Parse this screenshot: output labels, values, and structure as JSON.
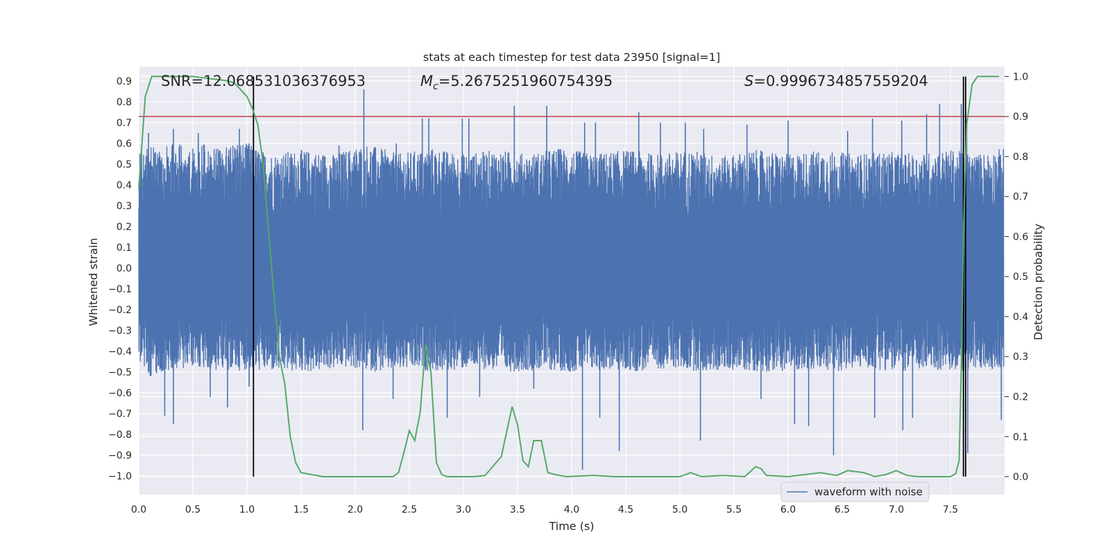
{
  "chart_data": {
    "type": "line",
    "title": "stats at each timestep for test data 23950 [signal=1]",
    "xlabel": "Time (s)",
    "ylabel": "Whitened strain",
    "ylabel_right": "Detection probability",
    "xlim": [
      0.0,
      8.0
    ],
    "ylim": [
      -1.09,
      0.97
    ],
    "ylim_right": [
      -0.045,
      1.025
    ],
    "x_ticks": [
      0.0,
      0.5,
      1.0,
      1.5,
      2.0,
      2.5,
      3.0,
      3.5,
      4.0,
      4.5,
      5.0,
      5.5,
      6.0,
      6.5,
      7.0,
      7.5
    ],
    "y_ticks": [
      0.9,
      0.8,
      0.7,
      0.6,
      0.5,
      0.4,
      0.3,
      0.2,
      0.1,
      0.0,
      -0.1,
      -0.2,
      -0.3,
      -0.4,
      -0.5,
      -0.6,
      -0.7,
      -0.8,
      -0.9,
      -1.0
    ],
    "y_ticks_right": [
      1.0,
      0.9,
      0.8,
      0.7,
      0.6,
      0.5,
      0.4,
      0.3,
      0.2,
      0.1,
      0.0
    ],
    "grid": true,
    "legend_position": "lower-right",
    "annotations": {
      "snr": "SNR=12.068531036376953",
      "mc_symbol": "M",
      "mc_sub": "c",
      "mc_value": "=5.2675251960754395",
      "s_symbol": "S",
      "s_value": "=0.9996734857559204"
    },
    "threshold": 0.9,
    "markers_x": [
      1.06,
      7.62,
      7.64
    ],
    "colors": {
      "waveform": "#4c72b0",
      "probability": "#55a868",
      "threshold": "#c44e52",
      "markers": "#000000",
      "plot_bg": "#eaeaf2",
      "grid": "#ffffff"
    },
    "series": [
      {
        "name": "waveform with noise",
        "axis": "left",
        "envelope_top": [
          [
            0.0,
            0.6
          ],
          [
            0.05,
            0.55
          ],
          [
            0.12,
            0.63
          ],
          [
            0.2,
            0.55
          ],
          [
            0.3,
            0.62
          ],
          [
            0.45,
            0.58
          ],
          [
            0.6,
            0.6
          ],
          [
            0.75,
            0.57
          ],
          [
            0.9,
            0.62
          ],
          [
            1.0,
            0.6
          ],
          [
            1.2,
            0.55
          ],
          [
            1.5,
            0.57
          ],
          [
            1.8,
            0.55
          ],
          [
            2.1,
            0.6
          ],
          [
            2.4,
            0.55
          ],
          [
            2.7,
            0.58
          ],
          [
            3.0,
            0.55
          ],
          [
            3.3,
            0.57
          ],
          [
            3.6,
            0.55
          ],
          [
            3.9,
            0.58
          ],
          [
            4.2,
            0.55
          ],
          [
            4.5,
            0.57
          ],
          [
            4.8,
            0.55
          ],
          [
            5.1,
            0.57
          ],
          [
            5.4,
            0.54
          ],
          [
            5.7,
            0.57
          ],
          [
            6.0,
            0.55
          ],
          [
            6.3,
            0.57
          ],
          [
            6.6,
            0.55
          ],
          [
            6.9,
            0.56
          ],
          [
            7.2,
            0.55
          ],
          [
            7.5,
            0.57
          ],
          [
            7.75,
            0.55
          ],
          [
            8.0,
            0.58
          ]
        ],
        "envelope_bottom": [
          [
            0.0,
            -0.45
          ],
          [
            0.1,
            -0.52
          ],
          [
            0.3,
            -0.5
          ],
          [
            0.5,
            -0.48
          ],
          [
            0.8,
            -0.5
          ],
          [
            1.0,
            -0.49
          ],
          [
            1.3,
            -0.5
          ],
          [
            1.6,
            -0.5
          ],
          [
            1.9,
            -0.48
          ],
          [
            2.2,
            -0.5
          ],
          [
            2.5,
            -0.49
          ],
          [
            2.8,
            -0.5
          ],
          [
            3.1,
            -0.48
          ],
          [
            3.4,
            -0.5
          ],
          [
            3.7,
            -0.49
          ],
          [
            4.0,
            -0.5
          ],
          [
            4.3,
            -0.49
          ],
          [
            4.6,
            -0.5
          ],
          [
            4.9,
            -0.48
          ],
          [
            5.2,
            -0.5
          ],
          [
            5.5,
            -0.49
          ],
          [
            5.8,
            -0.5
          ],
          [
            6.1,
            -0.49
          ],
          [
            6.4,
            -0.5
          ],
          [
            6.7,
            -0.48
          ],
          [
            7.0,
            -0.5
          ],
          [
            7.3,
            -0.49
          ],
          [
            7.6,
            -0.5
          ],
          [
            8.0,
            -0.48
          ]
        ],
        "peaks": [
          [
            0.09,
            0.65
          ],
          [
            0.32,
            0.67
          ],
          [
            0.55,
            0.65
          ],
          [
            0.93,
            0.67
          ],
          [
            1.02,
            0.6
          ],
          [
            1.85,
            0.59
          ],
          [
            2.08,
            0.86
          ],
          [
            2.38,
            0.6
          ],
          [
            2.62,
            0.72
          ],
          [
            2.68,
            0.72
          ],
          [
            2.99,
            0.72
          ],
          [
            3.05,
            0.72
          ],
          [
            3.47,
            0.78
          ],
          [
            3.77,
            0.78
          ],
          [
            4.12,
            0.7
          ],
          [
            4.22,
            0.7
          ],
          [
            4.62,
            0.75
          ],
          [
            4.82,
            0.7
          ],
          [
            5.05,
            0.7
          ],
          [
            5.22,
            0.67
          ],
          [
            5.62,
            0.69
          ],
          [
            6.0,
            0.71
          ],
          [
            6.55,
            0.66
          ],
          [
            6.78,
            0.72
          ],
          [
            7.05,
            0.71
          ],
          [
            7.28,
            0.74
          ],
          [
            7.4,
            0.79
          ],
          [
            7.6,
            0.79
          ],
          [
            7.65,
            0.72
          ]
        ],
        "troughs": [
          [
            0.24,
            -0.71
          ],
          [
            0.32,
            -0.75
          ],
          [
            0.66,
            -0.62
          ],
          [
            0.82,
            -0.67
          ],
          [
            1.02,
            -0.57
          ],
          [
            2.07,
            -0.78
          ],
          [
            2.35,
            -0.63
          ],
          [
            2.85,
            -0.72
          ],
          [
            3.15,
            -0.62
          ],
          [
            3.65,
            -0.58
          ],
          [
            4.1,
            -0.97
          ],
          [
            4.26,
            -0.72
          ],
          [
            4.44,
            -0.88
          ],
          [
            5.19,
            -0.83
          ],
          [
            5.75,
            -0.63
          ],
          [
            6.06,
            -0.75
          ],
          [
            6.19,
            -0.76
          ],
          [
            6.42,
            -0.9
          ],
          [
            6.8,
            -0.72
          ],
          [
            7.06,
            -0.78
          ],
          [
            7.15,
            -0.72
          ],
          [
            7.62,
            -0.73
          ],
          [
            7.66,
            -0.89
          ],
          [
            7.97,
            -0.73
          ]
        ]
      },
      {
        "name": "",
        "axis": "right",
        "x": [
          0.0,
          0.06,
          0.12,
          0.5,
          0.8,
          0.88,
          1.0,
          1.05,
          1.1,
          1.15,
          1.2,
          1.25,
          1.3,
          1.35,
          1.4,
          1.45,
          1.5,
          1.6,
          1.7,
          1.8,
          2.0,
          2.2,
          2.35,
          2.4,
          2.45,
          2.5,
          2.55,
          2.6,
          2.65,
          2.7,
          2.75,
          2.8,
          2.85,
          2.95,
          3.1,
          3.2,
          3.35,
          3.45,
          3.5,
          3.55,
          3.6,
          3.65,
          3.72,
          3.78,
          3.85,
          3.95,
          4.2,
          4.4,
          4.6,
          5.0,
          5.1,
          5.2,
          5.4,
          5.6,
          5.7,
          5.75,
          5.8,
          6.0,
          6.3,
          6.45,
          6.55,
          6.7,
          6.8,
          6.9,
          7.0,
          7.1,
          7.2,
          7.5,
          7.55,
          7.58,
          7.6,
          7.62,
          7.65,
          7.7,
          7.75,
          7.8,
          7.9,
          7.95
        ],
        "y": [
          0.72,
          0.95,
          1.0,
          1.0,
          0.99,
          0.985,
          0.95,
          0.92,
          0.88,
          0.78,
          0.61,
          0.45,
          0.3,
          0.23,
          0.1,
          0.035,
          0.01,
          0.005,
          0.0,
          0.0,
          0.0,
          0.0,
          0.0,
          0.01,
          0.06,
          0.115,
          0.09,
          0.16,
          0.33,
          0.26,
          0.035,
          0.005,
          0.0,
          0.0,
          0.0,
          0.003,
          0.05,
          0.175,
          0.13,
          0.04,
          0.025,
          0.09,
          0.09,
          0.01,
          0.005,
          0.0,
          0.003,
          0.0,
          0.0,
          0.0,
          0.01,
          0.0,
          0.003,
          0.0,
          0.025,
          0.02,
          0.003,
          0.0,
          0.01,
          0.003,
          0.015,
          0.01,
          0.0,
          0.005,
          0.015,
          0.003,
          0.0,
          0.0,
          0.008,
          0.04,
          0.27,
          0.61,
          0.88,
          0.98,
          1.0,
          1.0,
          1.0,
          1.0
        ]
      }
    ]
  }
}
